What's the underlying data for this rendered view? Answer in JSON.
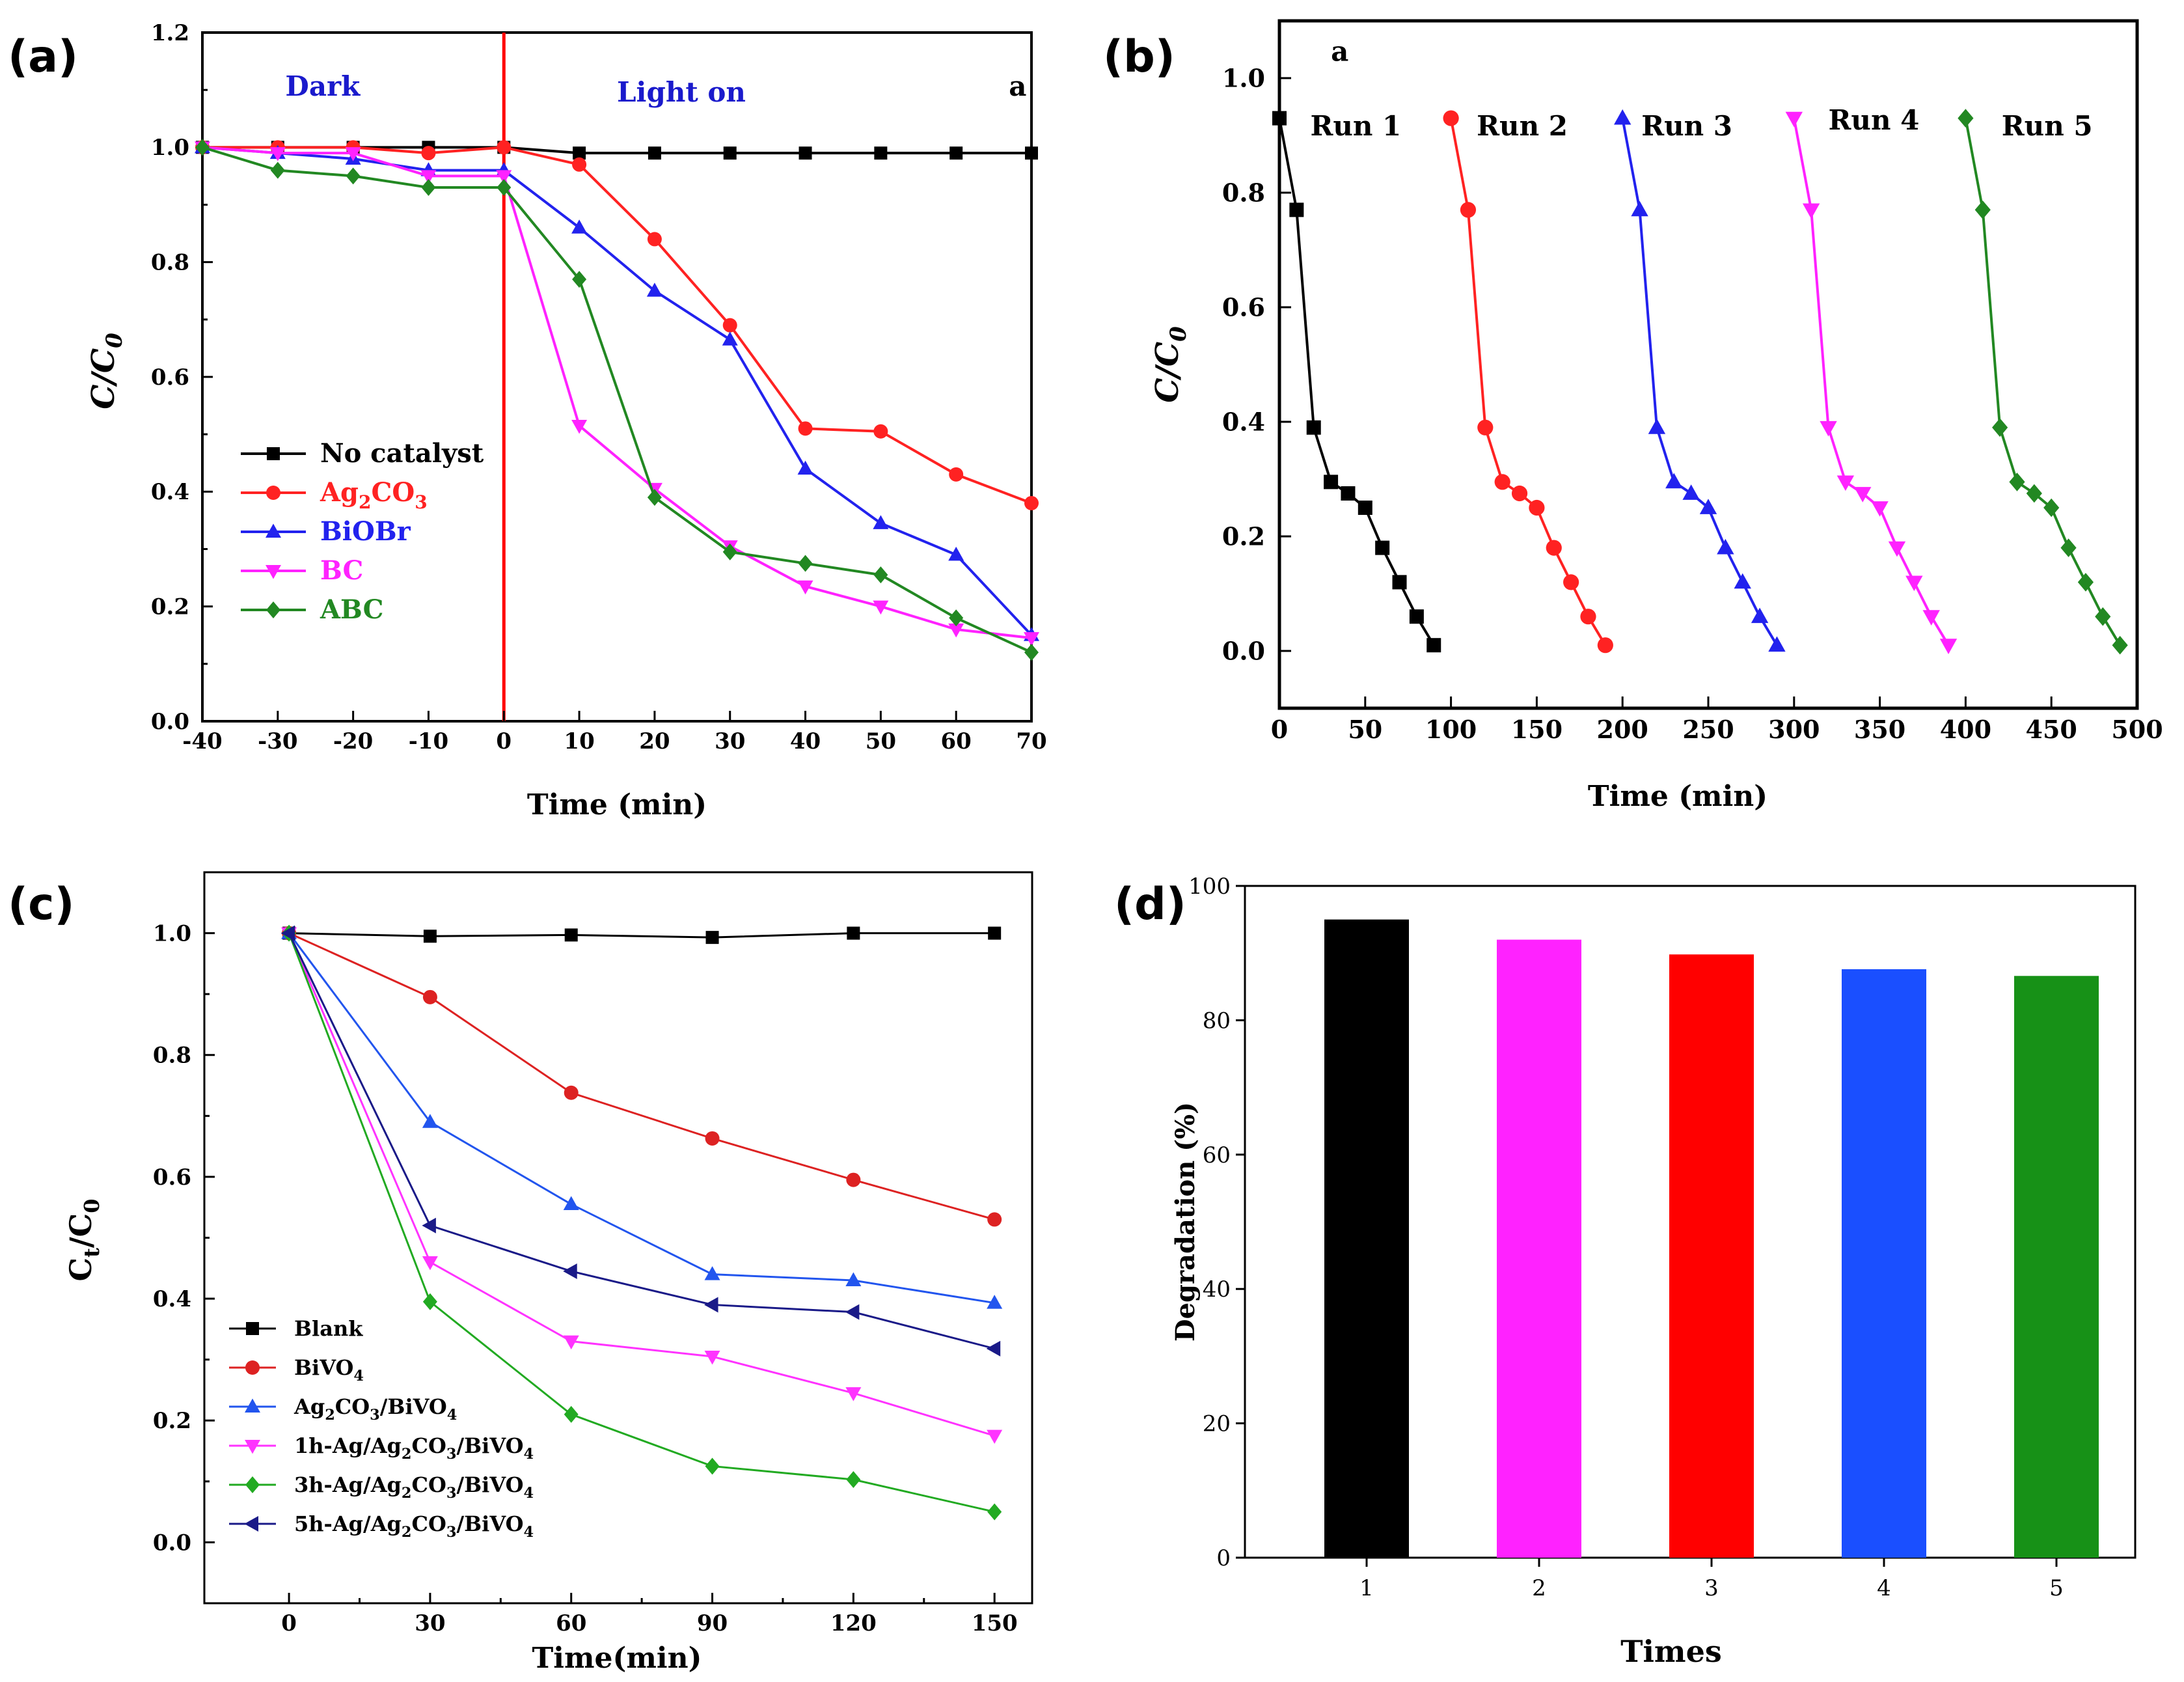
{
  "figure": {
    "panel_labels": [
      "(a)",
      "(b)",
      "(c)",
      "(d)"
    ]
  },
  "chart_data": [
    {
      "id": "a",
      "type": "line",
      "title": "",
      "xlabel": "Time (min)",
      "ylabel": "C/C",
      "ylabel_sub": "0",
      "xlim": [
        -40,
        70
      ],
      "ylim": [
        0.0,
        1.2
      ],
      "xticks": [
        -40,
        -30,
        -20,
        -10,
        0,
        10,
        20,
        30,
        40,
        50,
        60,
        70
      ],
      "yticks": [
        0.0,
        0.2,
        0.4,
        0.6,
        0.8,
        1.0,
        1.2
      ],
      "ytick_decimals": 1,
      "grid": false,
      "legend_position": "bottom-left",
      "annotations": [
        {
          "text": "Dark",
          "x": -29,
          "y": 1.09,
          "color": "#1a1acc"
        },
        {
          "text": "Light on",
          "x": 15,
          "y": 1.08,
          "color": "#1a1acc"
        },
        {
          "text": "a",
          "x": 67,
          "y": 1.09,
          "color": "#000000"
        }
      ],
      "vline": {
        "x": 0,
        "color": "#ff0000"
      },
      "series": [
        {
          "name": "No catalyst",
          "color": "#000000",
          "marker": "square",
          "x": [
            -40,
            -30,
            -20,
            -10,
            0,
            10,
            20,
            30,
            40,
            50,
            60,
            70
          ],
          "y": [
            1.0,
            1.0,
            1.0,
            1.0,
            1.0,
            0.99,
            0.99,
            0.99,
            0.99,
            0.99,
            0.99,
            0.99
          ]
        },
        {
          "name": "Ag2CO3",
          "legend_parts": [
            "Ag",
            "2",
            "CO",
            "3"
          ],
          "color": "#ff2222",
          "marker": "circle",
          "x": [
            -40,
            -30,
            -20,
            -10,
            0,
            10,
            20,
            30,
            40,
            50,
            60,
            70
          ],
          "y": [
            1.0,
            1.0,
            1.0,
            0.99,
            1.0,
            0.97,
            0.84,
            0.69,
            0.51,
            0.505,
            0.43,
            0.38
          ]
        },
        {
          "name": "BiOBr",
          "color": "#2222ee",
          "marker": "triangle-up",
          "x": [
            -40,
            -30,
            -20,
            -10,
            0,
            10,
            20,
            30,
            40,
            50,
            60,
            70
          ],
          "y": [
            1.0,
            0.99,
            0.98,
            0.96,
            0.96,
            0.86,
            0.75,
            0.665,
            0.44,
            0.345,
            0.29,
            0.15
          ]
        },
        {
          "name": "BC",
          "color": "#ff22ff",
          "marker": "triangle-down",
          "x": [
            -40,
            -30,
            -20,
            -10,
            0,
            10,
            20,
            30,
            40,
            50,
            60,
            70
          ],
          "y": [
            1.0,
            0.99,
            0.99,
            0.95,
            0.95,
            0.515,
            0.405,
            0.305,
            0.235,
            0.2,
            0.16,
            0.145
          ]
        },
        {
          "name": "ABC",
          "color": "#228822",
          "marker": "diamond",
          "x": [
            -40,
            -30,
            -20,
            -10,
            0,
            10,
            20,
            30,
            40,
            50,
            60,
            70
          ],
          "y": [
            1.0,
            0.96,
            0.95,
            0.93,
            0.93,
            0.77,
            0.39,
            0.295,
            0.275,
            0.255,
            0.18,
            0.12
          ]
        }
      ]
    },
    {
      "id": "b",
      "type": "line",
      "title": "",
      "xlabel": "Time (min)",
      "ylabel": "C/C",
      "ylabel_sub": "0",
      "xlim": [
        0,
        500
      ],
      "ylim": [
        -0.1,
        1.1
      ],
      "xticks": [
        0,
        50,
        100,
        150,
        200,
        250,
        300,
        350,
        400,
        450,
        500
      ],
      "yticks": [
        0.0,
        0.2,
        0.4,
        0.6,
        0.8,
        1.0
      ],
      "ytick_decimals": 1,
      "grid": false,
      "annotations": [
        {
          "text": "a",
          "x": 30,
          "y": 1.03,
          "color": "#000000"
        }
      ],
      "series": [
        {
          "name": "Run 1",
          "color": "#000000",
          "marker": "square",
          "label_x": 18,
          "label_y": 0.9,
          "x": [
            0,
            10,
            20,
            30,
            40,
            50,
            60,
            70,
            80,
            90
          ],
          "y": [
            0.93,
            0.77,
            0.39,
            0.295,
            0.275,
            0.25,
            0.18,
            0.12,
            0.06,
            0.01
          ]
        },
        {
          "name": "Run 2",
          "color": "#ff2222",
          "marker": "circle",
          "label_x": 115,
          "label_y": 0.9,
          "x": [
            100,
            110,
            120,
            130,
            140,
            150,
            160,
            170,
            180,
            190
          ],
          "y": [
            0.93,
            0.77,
            0.39,
            0.295,
            0.275,
            0.25,
            0.18,
            0.12,
            0.06,
            0.01
          ]
        },
        {
          "name": "Run 3",
          "color": "#2222ee",
          "marker": "triangle-up",
          "label_x": 211,
          "label_y": 0.9,
          "x": [
            200,
            210,
            220,
            230,
            240,
            250,
            260,
            270,
            280,
            290
          ],
          "y": [
            0.93,
            0.77,
            0.39,
            0.295,
            0.275,
            0.25,
            0.18,
            0.12,
            0.06,
            0.01
          ]
        },
        {
          "name": "Run 4",
          "color": "#ff22ff",
          "marker": "triangle-down",
          "label_x": 320,
          "label_y": 0.91,
          "x": [
            300,
            310,
            320,
            330,
            340,
            350,
            360,
            370,
            380,
            390
          ],
          "y": [
            0.93,
            0.77,
            0.39,
            0.295,
            0.275,
            0.25,
            0.18,
            0.12,
            0.06,
            0.01
          ]
        },
        {
          "name": "Run 5",
          "color": "#228822",
          "marker": "diamond",
          "label_x": 421,
          "label_y": 0.9,
          "x": [
            400,
            410,
            420,
            430,
            440,
            450,
            460,
            470,
            480,
            490
          ],
          "y": [
            0.93,
            0.77,
            0.39,
            0.295,
            0.275,
            0.25,
            0.18,
            0.12,
            0.06,
            0.01
          ]
        }
      ]
    },
    {
      "id": "c",
      "type": "line",
      "title": "",
      "xlabel": "Time(min)",
      "ylabel": "C",
      "ylabel_sub": "t",
      "ylabel_rest": "/C",
      "ylabel_sub2": "0",
      "xlim": [
        -18,
        158
      ],
      "ylim": [
        -0.1,
        1.1
      ],
      "xticks": [
        0,
        30,
        60,
        90,
        120,
        150
      ],
      "yticks": [
        0.0,
        0.2,
        0.4,
        0.6,
        0.8,
        1.0
      ],
      "ytick_decimals": 1,
      "grid": false,
      "legend_position": "bottom-left",
      "series": [
        {
          "name": "Blank",
          "color": "#000000",
          "marker": "square",
          "x": [
            0,
            30,
            60,
            90,
            120,
            150
          ],
          "y": [
            1.0,
            0.995,
            0.997,
            0.993,
            1.0,
            1.0
          ]
        },
        {
          "name": "BiVO4",
          "legend_parts": [
            "BiVO",
            "4"
          ],
          "color": "#dd2222",
          "marker": "circle",
          "x": [
            0,
            30,
            60,
            90,
            120,
            150
          ],
          "y": [
            1.0,
            0.895,
            0.738,
            0.663,
            0.595,
            0.53
          ]
        },
        {
          "name": "Ag2CO3/BiVO4",
          "legend_parts": [
            "Ag",
            "2",
            "CO",
            "3",
            "/BiVO",
            "4"
          ],
          "color": "#2255ee",
          "marker": "triangle-up",
          "x": [
            0,
            30,
            60,
            90,
            120,
            150
          ],
          "y": [
            1.0,
            0.69,
            0.555,
            0.44,
            0.43,
            0.393
          ]
        },
        {
          "name": "1h-Ag/Ag2CO3/BiVO4",
          "legend_parts": [
            "1h-Ag/Ag",
            "2",
            "CO",
            "3",
            "/BiVO",
            "4"
          ],
          "color": "#ff33ff",
          "marker": "triangle-down",
          "x": [
            0,
            30,
            60,
            90,
            120,
            150
          ],
          "y": [
            1.0,
            0.46,
            0.33,
            0.305,
            0.245,
            0.175
          ]
        },
        {
          "name": "3h-Ag/Ag2CO3/BiVO4",
          "legend_parts": [
            "3h-Ag/Ag",
            "2",
            "CO",
            "3",
            "/BiVO",
            "4"
          ],
          "color": "#22aa22",
          "marker": "diamond",
          "x": [
            0,
            30,
            60,
            90,
            120,
            150
          ],
          "y": [
            1.0,
            0.395,
            0.21,
            0.125,
            0.103,
            0.05
          ]
        },
        {
          "name": "5h-Ag/Ag2CO3/BiVO4",
          "legend_parts": [
            "5h-Ag/Ag",
            "2",
            "CO",
            "3",
            "/BiVO",
            "4"
          ],
          "color": "#1a1a88",
          "marker": "triangle-left",
          "x": [
            0,
            30,
            60,
            90,
            120,
            150
          ],
          "y": [
            1.0,
            0.52,
            0.445,
            0.39,
            0.378,
            0.318
          ]
        }
      ]
    },
    {
      "id": "d",
      "type": "bar",
      "title": "",
      "xlabel": "Times",
      "ylabel": "Degradation (%)",
      "categories": [
        "1",
        "2",
        "3",
        "4",
        "5"
      ],
      "values": [
        95,
        92,
        89.8,
        87.6,
        86.6
      ],
      "colors": [
        "#000000",
        "#ff22ff",
        "#ff0000",
        "#1a4fff",
        "#179117"
      ],
      "ylim": [
        0,
        100
      ],
      "yticks": [
        0,
        20,
        40,
        60,
        80,
        100
      ],
      "ytick_decimals": 0,
      "grid": false
    }
  ]
}
